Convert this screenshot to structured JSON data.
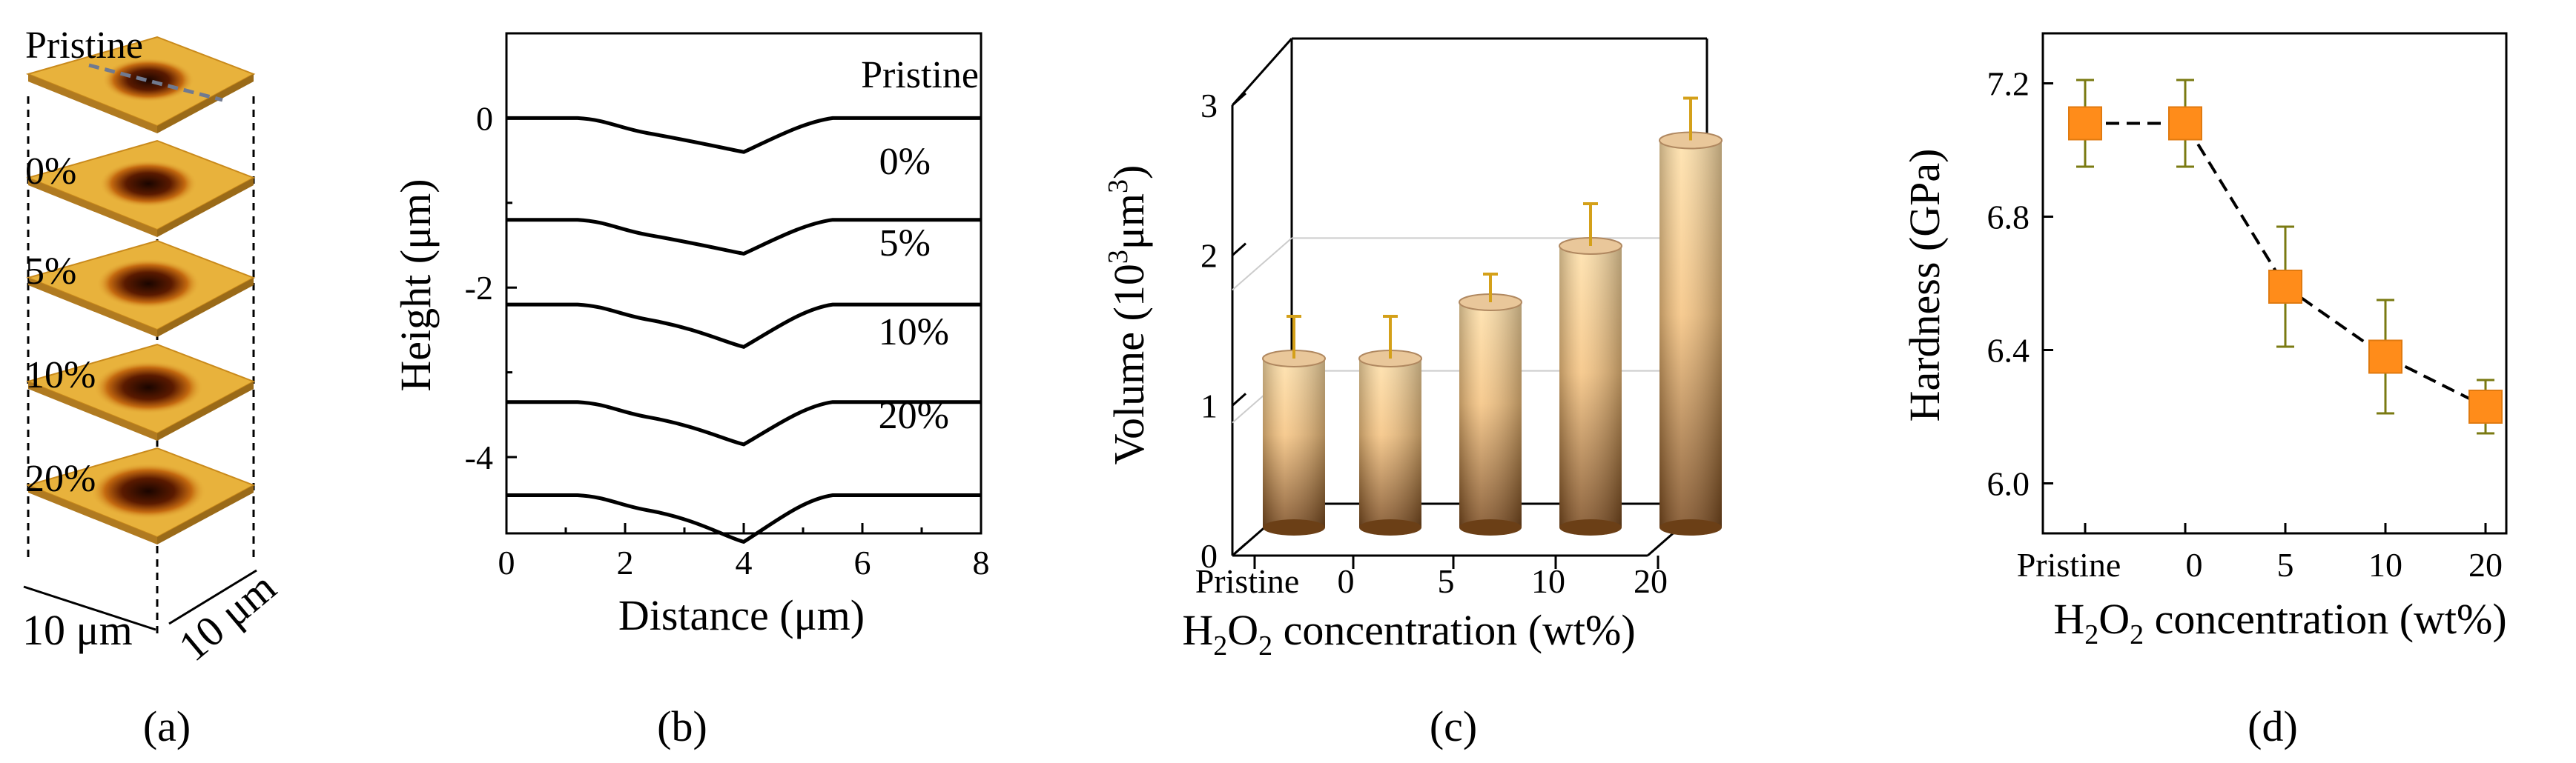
{
  "colors": {
    "line": "#000000",
    "marker": "#ff8c1a",
    "error": "#d4a019",
    "error_d": "#7a7a12",
    "afm_bg": "#e8b23c",
    "afm_dark": "#3a1500"
  },
  "panels": {
    "a": "(a)",
    "b": "(b)",
    "c": "(c)",
    "d": "(d)"
  },
  "chart_data": [
    {
      "panel": "a",
      "type": "other",
      "description_labels": [
        "Pristine",
        "0%",
        "5%",
        "10%",
        "20%"
      ],
      "scale_x": "10 μm",
      "scale_y": "10 μm"
    },
    {
      "panel": "b",
      "type": "line",
      "xlabel": "Distance (μm)",
      "ylabel": "Height (μm)",
      "xlim": [
        0,
        8
      ],
      "ylim": [
        -4.9,
        1.0
      ],
      "xticks": [
        "0",
        "2",
        "4",
        "6",
        "8"
      ],
      "yticks": [
        "0",
        "-2",
        "-4"
      ],
      "series": [
        {
          "name": "Pristine",
          "offset": 0.0,
          "x": [
            0,
            1.2,
            1.7,
            4.0,
            5.4,
            8
          ],
          "y": [
            0,
            0,
            -0.05,
            -0.4,
            0,
            0
          ]
        },
        {
          "name": "0%",
          "offset": -1.2,
          "x": [
            0,
            1.2,
            1.7,
            4.0,
            5.4,
            8
          ],
          "y": [
            0,
            0,
            -0.05,
            -0.4,
            0,
            0
          ]
        },
        {
          "name": "5%",
          "offset": -2.2,
          "x": [
            0,
            1.2,
            1.7,
            4.0,
            5.4,
            8
          ],
          "y": [
            0,
            0,
            -0.1,
            -0.5,
            0,
            0
          ]
        },
        {
          "name": "10%",
          "offset": -3.35,
          "x": [
            0,
            1.2,
            1.7,
            4.0,
            5.4,
            8
          ],
          "y": [
            0,
            0,
            -0.1,
            -0.5,
            0,
            0
          ]
        },
        {
          "name": "20%",
          "offset": -4.45,
          "x": [
            0,
            1.2,
            1.7,
            4.0,
            5.4,
            8
          ],
          "y": [
            0,
            0,
            -0.1,
            -0.55,
            0,
            0
          ]
        }
      ],
      "labels": [
        "Pristine",
        "0%",
        "5%",
        "10%",
        "20%"
      ]
    },
    {
      "panel": "c",
      "type": "bar",
      "xlabel": "H2O2 concentration (wt%)",
      "xlabel_parts": [
        "H",
        "2",
        "O",
        "2",
        " concentration (wt%)"
      ],
      "ylabel_parts": [
        "Volume (10",
        "3",
        "μm",
        "3",
        ")"
      ],
      "categories": [
        "Pristine",
        "0",
        "5",
        "10",
        "20"
      ],
      "values": [
        1.2,
        1.2,
        1.6,
        2.0,
        2.75
      ],
      "errors": [
        0.3,
        0.3,
        0.2,
        0.3,
        0.3
      ],
      "ylim": [
        0,
        3
      ],
      "yticks": [
        "0",
        "1",
        "2",
        "3"
      ]
    },
    {
      "panel": "d",
      "type": "line",
      "xlabel_parts": [
        "H",
        "2",
        "O",
        "2",
        " concentration (wt%)"
      ],
      "ylabel": "Hardness (GPa)",
      "categories": [
        "Pristine",
        "0",
        "5",
        "10",
        "20"
      ],
      "values": [
        7.08,
        7.08,
        6.59,
        6.38,
        6.23
      ],
      "errors": [
        0.13,
        0.13,
        0.18,
        0.17,
        0.08
      ],
      "ylim": [
        5.85,
        7.35
      ],
      "yticks": [
        "6.0",
        "6.4",
        "6.8",
        "7.2"
      ]
    }
  ]
}
